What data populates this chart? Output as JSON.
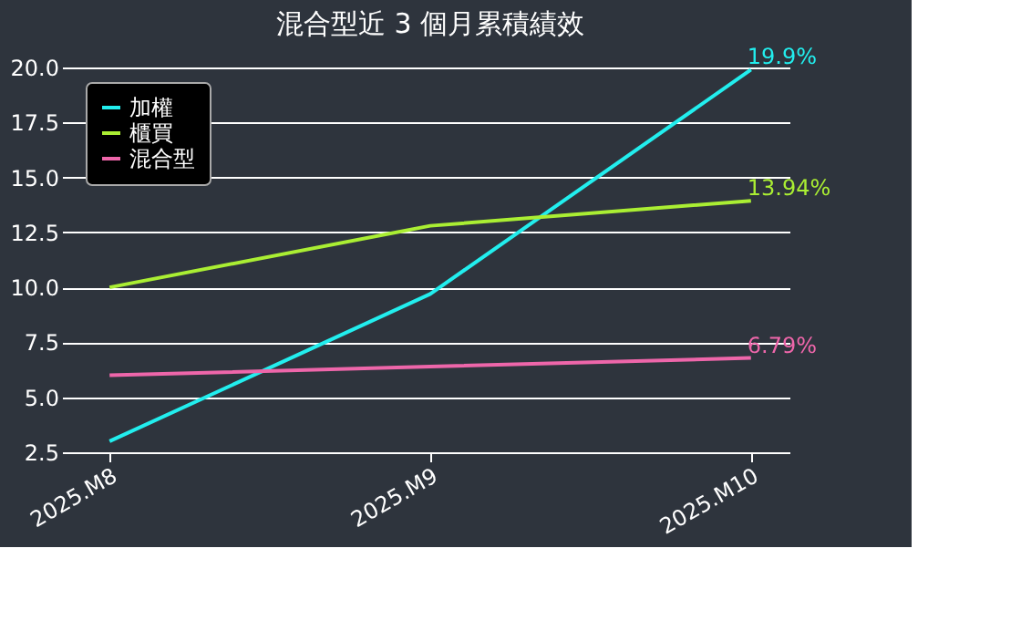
{
  "chart_data": {
    "type": "line",
    "title": "混合型近 3 個月累積績效",
    "categories": [
      "2025.M8",
      "2025.M9",
      "2025.M10"
    ],
    "series": [
      {
        "name": "加權",
        "color": "#22eeee",
        "values": [
          3.0,
          9.7,
          19.9
        ],
        "value_labels": [
          null,
          null,
          "19.9%"
        ]
      },
      {
        "name": "櫃買",
        "color": "#aaee33",
        "values": [
          10.0,
          12.8,
          13.94
        ],
        "value_labels": [
          null,
          null,
          "13.94%"
        ]
      },
      {
        "name": "混合型",
        "color": "#ee66aa",
        "values": [
          6.0,
          6.4,
          6.79
        ],
        "value_labels": [
          null,
          null,
          "6.79%"
        ]
      }
    ],
    "ylim": [
      2.5,
      20.0
    ],
    "yticks": [
      2.5,
      {
        "value": 5,
        "label": "5.0"
      },
      7.5,
      {
        "value": 10,
        "label": "10.0"
      },
      12.5,
      {
        "value": 15,
        "label": "15.0"
      },
      17.5,
      {
        "value": 20,
        "label": "20.0"
      }
    ],
    "grid": "y",
    "legend": "top left",
    "marker": "none",
    "line_style": "solid"
  }
}
